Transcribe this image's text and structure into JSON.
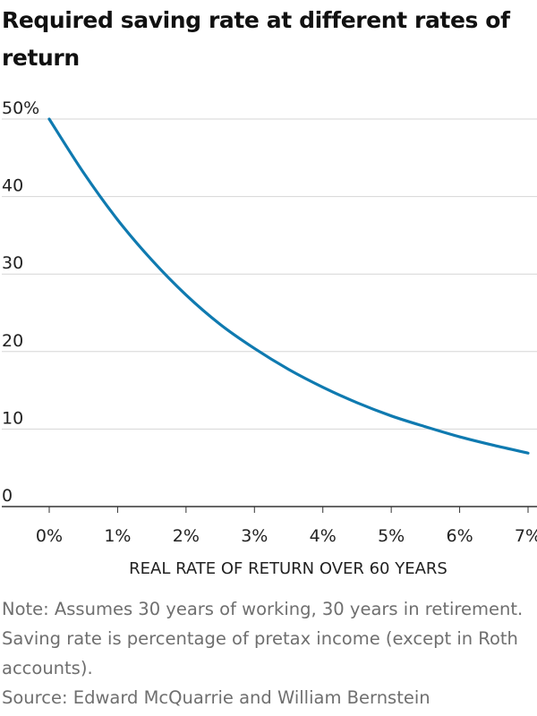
{
  "chart_data": {
    "type": "line",
    "title": "Required saving rate at different rates of return",
    "xlabel": "REAL RATE OF RETURN OVER 60 YEARS",
    "ylabel": "",
    "x": [
      0,
      0.5,
      1,
      1.5,
      2,
      2.5,
      3,
      3.5,
      4,
      4.5,
      5,
      5.5,
      6,
      6.5,
      7
    ],
    "x_tick_labels": [
      "0%",
      "1%",
      "2%",
      "3%",
      "4%",
      "5%",
      "6%",
      "7%"
    ],
    "y_tick_labels": [
      "50%",
      "40",
      "30",
      "20",
      "10",
      "0"
    ],
    "xlim": [
      0,
      7
    ],
    "ylim": [
      0,
      50
    ],
    "grid": true,
    "series": [
      {
        "values": [
          50.0,
          43.1,
          37.0,
          31.8,
          27.3,
          23.5,
          20.4,
          17.7,
          15.4,
          13.4,
          11.7,
          10.3,
          9.0,
          7.9,
          6.9
        ]
      }
    ],
    "colors": {
      "line": "#0f7ab0",
      "grid": "#d6d6d6",
      "axis": "#333333"
    }
  },
  "note": "Note: Assumes 30 years of working, 30 years in retirement. Saving rate is percentage of pretax income (except in Roth accounts).",
  "source": "Source: Edward McQuarrie and William Bernstein"
}
